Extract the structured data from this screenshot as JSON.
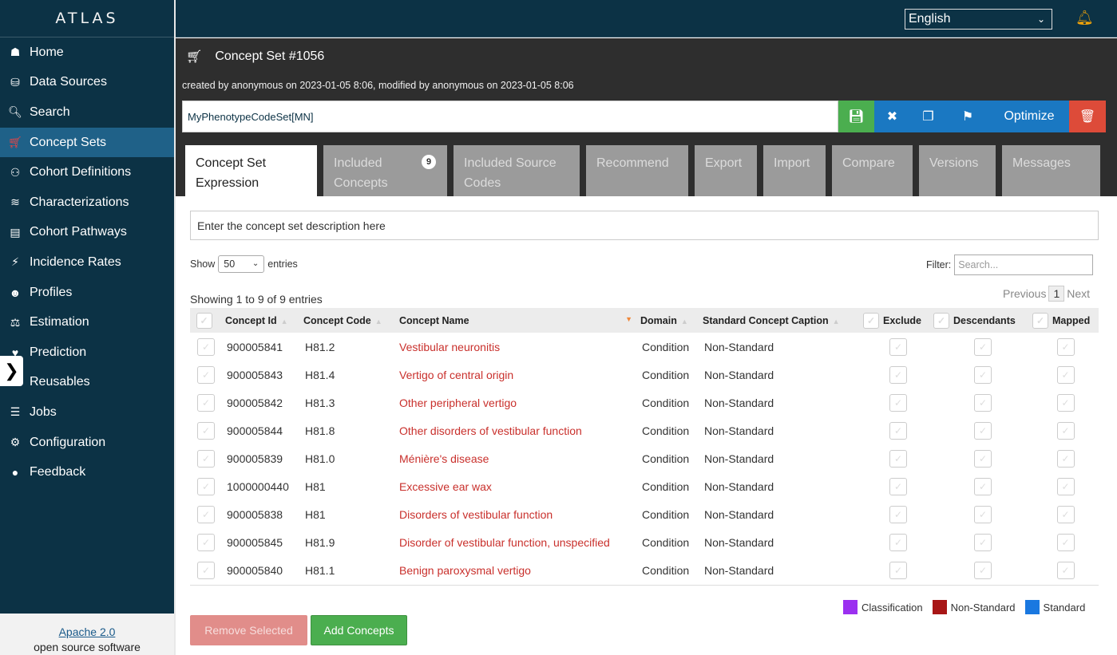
{
  "app": {
    "brand": "ATLAS",
    "language": "English"
  },
  "sidebar": {
    "items": [
      {
        "label": "Home",
        "icon": "home-icon"
      },
      {
        "label": "Data Sources",
        "icon": "database-icon"
      },
      {
        "label": "Search",
        "icon": "search-icon"
      },
      {
        "label": "Concept Sets",
        "icon": "cart-icon",
        "active": true
      },
      {
        "label": "Cohort Definitions",
        "icon": "users-icon"
      },
      {
        "label": "Characterizations",
        "icon": "chart-line-icon"
      },
      {
        "label": "Cohort Pathways",
        "icon": "sitemap-icon"
      },
      {
        "label": "Incidence Rates",
        "icon": "bolt-icon"
      },
      {
        "label": "Profiles",
        "icon": "user-icon"
      },
      {
        "label": "Estimation",
        "icon": "balance-scale-icon"
      },
      {
        "label": "Prediction",
        "icon": "heartbeat-icon"
      },
      {
        "label": "Reusables",
        "icon": "recycle-icon"
      },
      {
        "label": "Jobs",
        "icon": "tasks-icon"
      },
      {
        "label": "Configuration",
        "icon": "cogs-icon"
      },
      {
        "label": "Feedback",
        "icon": "comment-icon"
      }
    ],
    "footer": {
      "license": "Apache 2.0",
      "note": "open source software"
    }
  },
  "header": {
    "title": "Concept Set #1056",
    "meta": "created by anonymous on 2023-01-05 8:06, modified by anonymous on 2023-01-05 8:06",
    "name_value": "MyPhenotypeCodeSet[MN]",
    "optimize_label": "Optimize"
  },
  "tabs": [
    {
      "label": "Concept Set Expression",
      "active": true
    },
    {
      "label": "Included Concepts",
      "badge": "9"
    },
    {
      "label": "Included Source Codes"
    },
    {
      "label": "Recommend"
    },
    {
      "label": "Export"
    },
    {
      "label": "Import"
    },
    {
      "label": "Compare"
    },
    {
      "label": "Versions"
    },
    {
      "label": "Messages"
    }
  ],
  "content": {
    "description_placeholder": "Enter the concept set description here",
    "show_label": "Show",
    "entries_label": "entries",
    "page_size": "50",
    "filter_label": "Filter:",
    "filter_placeholder": "Search...",
    "showing_text": "Showing 1 to 9 of 9 entries",
    "pager": {
      "previous": "Previous",
      "page": "1",
      "next": "Next"
    },
    "columns": [
      "Concept Id",
      "Concept Code",
      "Concept Name",
      "Domain",
      "Standard Concept Caption",
      "Exclude",
      "Descendants",
      "Mapped"
    ],
    "rows": [
      {
        "id": "900005841",
        "code": "H81.2",
        "name": "Vestibular neuronitis",
        "domain": "Condition",
        "std": "Non-Standard"
      },
      {
        "id": "900005843",
        "code": "H81.4",
        "name": "Vertigo of central origin",
        "domain": "Condition",
        "std": "Non-Standard"
      },
      {
        "id": "900005842",
        "code": "H81.3",
        "name": "Other peripheral vertigo",
        "domain": "Condition",
        "std": "Non-Standard"
      },
      {
        "id": "900005844",
        "code": "H81.8",
        "name": "Other disorders of vestibular function",
        "domain": "Condition",
        "std": "Non-Standard"
      },
      {
        "id": "900005839",
        "code": "H81.0",
        "name": "Ménière's disease",
        "domain": "Condition",
        "std": "Non-Standard"
      },
      {
        "id": "1000000440",
        "code": "H81",
        "name": "Excessive ear wax",
        "domain": "Condition",
        "std": "Non-Standard"
      },
      {
        "id": "900005838",
        "code": "H81",
        "name": "Disorders of vestibular function",
        "domain": "Condition",
        "std": "Non-Standard"
      },
      {
        "id": "900005845",
        "code": "H81.9",
        "name": "Disorder of vestibular function, unspecified",
        "domain": "Condition",
        "std": "Non-Standard"
      },
      {
        "id": "900005840",
        "code": "H81.1",
        "name": "Benign paroxysmal vertigo",
        "domain": "Condition",
        "std": "Non-Standard"
      }
    ],
    "legend": [
      {
        "label": "Classification",
        "color": "#9b30f0"
      },
      {
        "label": "Non-Standard",
        "color": "#a81616"
      },
      {
        "label": "Standard",
        "color": "#1a78e0"
      }
    ],
    "remove_label": "Remove Selected",
    "add_label": "Add Concepts"
  }
}
